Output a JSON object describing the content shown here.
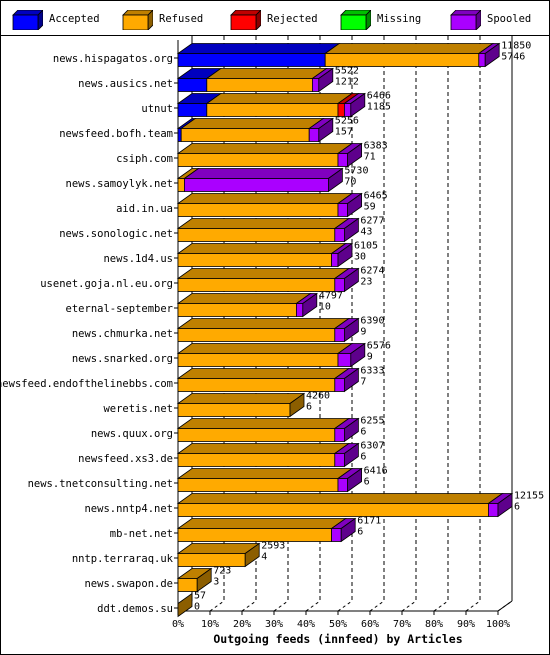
{
  "legend": [
    {
      "label": "Accepted",
      "color": "#0000ff"
    },
    {
      "label": "Refused",
      "color": "#ffaa00"
    },
    {
      "label": "Rejected",
      "color": "#ff0000"
    },
    {
      "label": "Missing",
      "color": "#00ff00"
    },
    {
      "label": "Spooled",
      "color": "#aa00ff"
    }
  ],
  "chart_data": {
    "type": "bar",
    "orientation": "horizontal",
    "stacked": true,
    "xlabel": "Outgoing feeds (innfeed) by Articles",
    "ylabel": "",
    "xlim": [
      0,
      100
    ],
    "x_ticks": [
      "0%",
      "10%",
      "20%",
      "30%",
      "40%",
      "50%",
      "60%",
      "70%",
      "80%",
      "90%",
      "100%"
    ],
    "grid": true,
    "legend_position": "top",
    "categories": [
      "news.hispagatos.org",
      "news.ausics.net",
      "utnut",
      "newsfeed.bofh.team",
      "csiph.com",
      "news.samoylyk.net",
      "aid.in.ua",
      "news.sonologic.net",
      "news.1d4.us",
      "usenet.goja.nl.eu.org",
      "eternal-september",
      "news.chmurka.net",
      "news.snarked.org",
      "newsfeed.endofthelinebbs.com",
      "weretis.net",
      "news.quux.org",
      "newsfeed.xs3.de",
      "news.tnetconsulting.net",
      "news.nntp4.net",
      "mb-net.net",
      "nntp.terraraq.uk",
      "news.swapon.de",
      "ddt.demos.su"
    ],
    "offered": [
      "11850",
      "5522",
      "6466",
      "5256",
      "6383",
      "5730",
      "6465",
      "6277",
      "6105",
      "6274",
      "4797",
      "6390",
      "6576",
      "6333",
      "4260",
      "6255",
      "6307",
      "6416",
      "12155",
      "6171",
      "2593",
      "723",
      "57"
    ],
    "second_value": [
      "5746",
      "1212",
      "1185",
      "157",
      "71",
      "70",
      "59",
      "43",
      "30",
      "23",
      "10",
      "9",
      "9",
      "7",
      "6",
      "6",
      "6",
      "6",
      "6",
      "6",
      "4",
      "3",
      "0"
    ],
    "series": [
      {
        "name": "Accepted",
        "values": [
          46,
          9,
          9,
          1,
          0,
          0,
          0,
          0,
          0,
          0,
          0,
          0,
          0,
          0,
          0,
          0,
          0,
          0,
          0,
          0,
          0,
          0,
          0
        ]
      },
      {
        "name": "Refused",
        "values": [
          48,
          33,
          41,
          40,
          50,
          2,
          50,
          49,
          48,
          49,
          37,
          49,
          50,
          49,
          35,
          49,
          49,
          50,
          97,
          48,
          21,
          6,
          0
        ]
      },
      {
        "name": "Rejected",
        "values": [
          0,
          0,
          2,
          0,
          0,
          0,
          0,
          0,
          0,
          0,
          0,
          0,
          0,
          0,
          0,
          0,
          0,
          0,
          0,
          0,
          0,
          0,
          0
        ]
      },
      {
        "name": "Missing",
        "values": [
          0,
          0,
          0,
          0,
          0,
          0,
          0,
          0,
          0,
          0,
          0,
          0,
          0,
          0,
          0,
          0,
          0,
          0,
          0,
          0,
          0,
          0,
          0
        ]
      },
      {
        "name": "Spooled",
        "values": [
          2,
          2,
          2,
          3,
          3,
          45,
          3,
          3,
          2,
          3,
          2,
          3,
          4,
          3,
          0,
          3,
          3,
          3,
          3,
          3,
          0,
          0,
          0
        ]
      }
    ]
  }
}
